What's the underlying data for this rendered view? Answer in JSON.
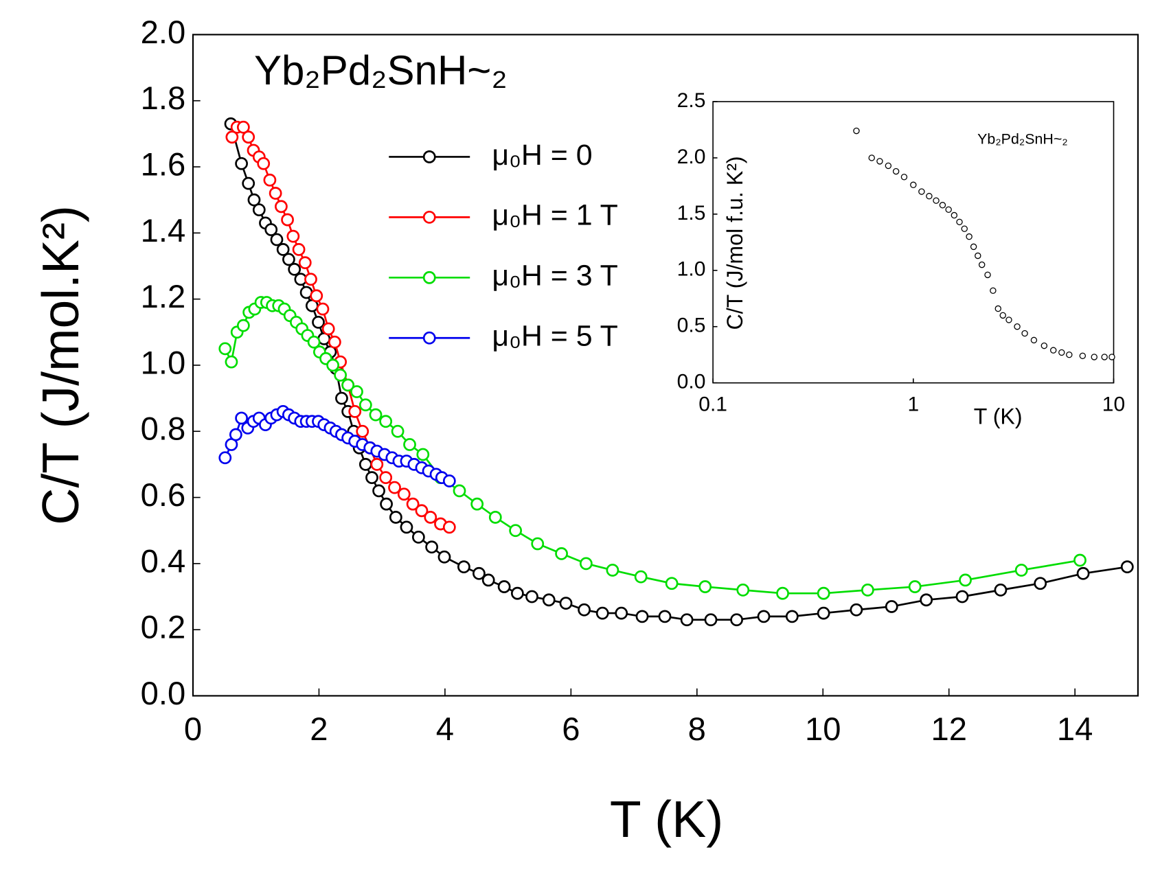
{
  "chart_data": [
    {
      "type": "line",
      "annotation": "Yb₂Pd₂SnH~₂",
      "xlabel": "T (K)",
      "ylabel": "C/T (J/mol.K²)",
      "xlim": [
        0,
        15
      ],
      "ylim": [
        0,
        2
      ],
      "xticks": [
        0,
        2,
        4,
        6,
        8,
        10,
        12,
        14
      ],
      "yticks": [
        {
          "value": 0,
          "label": "0.0"
        },
        {
          "value": 0.2,
          "label": "0.2"
        },
        {
          "value": 0.4,
          "label": "0.4"
        },
        {
          "value": 0.6,
          "label": "0.6"
        },
        {
          "value": 0.8,
          "label": "0.8"
        },
        {
          "value": 1.0,
          "label": "1.0"
        },
        {
          "value": 1.2,
          "label": "1.2"
        },
        {
          "value": 1.4,
          "label": "1.4"
        },
        {
          "value": 1.6,
          "label": "1.6"
        },
        {
          "value": 1.8,
          "label": "1.8"
        },
        {
          "value": 2.0,
          "label": "2.0"
        }
      ],
      "series": [
        {
          "name": "μ₀H = 0",
          "color": "#000000",
          "x": [
            0.6,
            0.77,
            0.88,
            0.97,
            1.05,
            1.15,
            1.24,
            1.33,
            1.43,
            1.52,
            1.61,
            1.71,
            1.8,
            1.89,
            1.99,
            2.08,
            2.18,
            2.27,
            2.36,
            2.46,
            2.55,
            2.64,
            2.74,
            2.84,
            2.95,
            3.07,
            3.22,
            3.39,
            3.58,
            3.79,
            3.99,
            4.3,
            4.54,
            4.69,
            4.94,
            5.15,
            5.38,
            5.65,
            5.92,
            6.21,
            6.5,
            6.8,
            7.13,
            7.49,
            7.84,
            8.22,
            8.63,
            9.06,
            9.51,
            10.01,
            10.53,
            11.09,
            11.64,
            12.21,
            12.82,
            13.45,
            14.13,
            14.83
          ],
          "values": [
            1.73,
            1.61,
            1.55,
            1.5,
            1.47,
            1.43,
            1.41,
            1.38,
            1.35,
            1.32,
            1.29,
            1.26,
            1.22,
            1.18,
            1.13,
            1.08,
            1.04,
            0.99,
            0.9,
            0.86,
            0.8,
            0.75,
            0.7,
            0.66,
            0.62,
            0.58,
            0.54,
            0.51,
            0.48,
            0.45,
            0.42,
            0.39,
            0.37,
            0.35,
            0.33,
            0.31,
            0.3,
            0.29,
            0.28,
            0.26,
            0.25,
            0.25,
            0.24,
            0.24,
            0.23,
            0.23,
            0.23,
            0.24,
            0.24,
            0.25,
            0.26,
            0.27,
            0.29,
            0.3,
            0.32,
            0.34,
            0.37,
            0.39
          ]
        },
        {
          "name": "μ₀H = 1 T",
          "color": "#ff0000",
          "x": [
            0.62,
            0.7,
            0.8,
            0.88,
            0.96,
            1.05,
            1.12,
            1.22,
            1.31,
            1.4,
            1.5,
            1.59,
            1.68,
            1.78,
            1.87,
            1.96,
            2.06,
            2.15,
            2.25,
            2.34,
            2.46,
            2.57,
            2.69,
            2.81,
            2.92,
            3.06,
            3.2,
            3.35,
            3.49,
            3.63,
            3.77,
            3.93,
            4.07
          ],
          "values": [
            1.69,
            1.72,
            1.72,
            1.69,
            1.65,
            1.63,
            1.61,
            1.56,
            1.52,
            1.48,
            1.44,
            1.39,
            1.35,
            1.31,
            1.26,
            1.21,
            1.17,
            1.11,
            1.07,
            1.01,
            0.94,
            0.86,
            0.8,
            0.75,
            0.7,
            0.66,
            0.63,
            0.61,
            0.58,
            0.56,
            0.54,
            0.52,
            0.51
          ]
        },
        {
          "name": "μ₀H = 3 T",
          "color": "#00dd00",
          "x": [
            0.51,
            0.61,
            0.7,
            0.8,
            0.89,
            0.98,
            1.08,
            1.17,
            1.26,
            1.36,
            1.45,
            1.54,
            1.64,
            1.73,
            1.82,
            1.92,
            2.01,
            2.11,
            2.22,
            2.34,
            2.46,
            2.6,
            2.74,
            2.9,
            3.06,
            3.25,
            3.44,
            3.65,
            3.93,
            4.23,
            4.51,
            4.8,
            5.12,
            5.47,
            5.85,
            6.24,
            6.66,
            7.11,
            7.6,
            8.13,
            8.73,
            9.36,
            10.01,
            10.71,
            11.46,
            12.26,
            13.15,
            14.08
          ],
          "values": [
            1.05,
            1.01,
            1.1,
            1.12,
            1.16,
            1.17,
            1.19,
            1.19,
            1.18,
            1.18,
            1.17,
            1.15,
            1.13,
            1.11,
            1.09,
            1.07,
            1.04,
            1.02,
            1.0,
            0.97,
            0.94,
            0.92,
            0.88,
            0.85,
            0.83,
            0.8,
            0.76,
            0.73,
            0.66,
            0.62,
            0.58,
            0.54,
            0.5,
            0.46,
            0.43,
            0.4,
            0.38,
            0.36,
            0.34,
            0.33,
            0.32,
            0.31,
            0.31,
            0.32,
            0.33,
            0.35,
            0.38,
            0.41
          ]
        },
        {
          "name": "μ₀H = 5 T",
          "color": "#0000ee",
          "x": [
            0.51,
            0.61,
            0.68,
            0.77,
            0.87,
            0.96,
            1.05,
            1.15,
            1.24,
            1.33,
            1.43,
            1.52,
            1.61,
            1.71,
            1.8,
            1.89,
            1.99,
            2.08,
            2.18,
            2.27,
            2.36,
            2.46,
            2.57,
            2.69,
            2.81,
            2.92,
            3.04,
            3.16,
            3.27,
            3.39,
            3.51,
            3.63,
            3.74,
            3.86,
            3.95,
            4.07
          ],
          "values": [
            0.72,
            0.76,
            0.79,
            0.84,
            0.81,
            0.83,
            0.84,
            0.82,
            0.84,
            0.85,
            0.86,
            0.85,
            0.84,
            0.83,
            0.83,
            0.83,
            0.83,
            0.82,
            0.81,
            0.8,
            0.79,
            0.78,
            0.77,
            0.76,
            0.75,
            0.74,
            0.73,
            0.72,
            0.71,
            0.71,
            0.7,
            0.69,
            0.68,
            0.67,
            0.66,
            0.65
          ]
        }
      ]
    },
    {
      "type": "scatter",
      "annotation": "Yb₂Pd₂SnH~₂",
      "xlabel": "T (K)",
      "ylabel": "C/T (J/mol f.u. K²)",
      "xscale": "log",
      "xlim": [
        0.1,
        10
      ],
      "ylim": [
        0,
        2.5
      ],
      "xticks": [
        0.1,
        1,
        10
      ],
      "yticks": [
        {
          "value": 0,
          "label": "0.0"
        },
        {
          "value": 0.5,
          "label": "0.5"
        },
        {
          "value": 1.0,
          "label": "1.0"
        },
        {
          "value": 1.5,
          "label": "1.5"
        },
        {
          "value": 2.0,
          "label": "2.0"
        },
        {
          "value": 2.5,
          "label": "2.5"
        }
      ],
      "color": "#000000",
      "x": [
        0.52,
        0.62,
        0.68,
        0.75,
        0.82,
        0.9,
        1.0,
        1.1,
        1.2,
        1.3,
        1.4,
        1.5,
        1.6,
        1.7,
        1.8,
        1.9,
        2.0,
        2.1,
        2.2,
        2.35,
        2.5,
        2.65,
        2.8,
        3.0,
        3.3,
        3.6,
        4.0,
        4.5,
        5.0,
        5.5,
        6.0,
        7.0,
        8.0,
        9.0,
        9.8
      ],
      "values": [
        2.24,
        2.0,
        1.97,
        1.93,
        1.88,
        1.83,
        1.76,
        1.7,
        1.66,
        1.62,
        1.58,
        1.54,
        1.49,
        1.43,
        1.37,
        1.3,
        1.21,
        1.13,
        1.05,
        0.96,
        0.82,
        0.66,
        0.6,
        0.56,
        0.5,
        0.44,
        0.38,
        0.33,
        0.29,
        0.27,
        0.25,
        0.24,
        0.23,
        0.23,
        0.23
      ]
    }
  ]
}
